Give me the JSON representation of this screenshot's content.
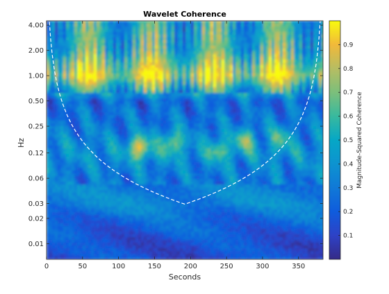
{
  "chart_data": {
    "type": "heatmap",
    "title": "Wavelet Coherence",
    "xlabel": "Seconds",
    "ylabel": "Hz",
    "colorbar_label": "Magnitude-Squared Coherence",
    "colormap": "parula",
    "x_range": [
      0,
      384
    ],
    "x_ticks": [
      0,
      50,
      100,
      150,
      200,
      250,
      300,
      350
    ],
    "x_tick_labels": [
      "0",
      "50",
      "100",
      "150",
      "200",
      "250",
      "300",
      "350"
    ],
    "y_scale": "log",
    "y_ticks": [
      0.01,
      0.02,
      0.03,
      0.06,
      0.12,
      0.25,
      0.5,
      1.0,
      2.0,
      4.0
    ],
    "y_tick_labels": [
      "0.01",
      "0.02",
      "0.03",
      "0.06",
      "0.12",
      "0.25",
      "0.50",
      "1.00",
      "2.00",
      "4.00"
    ],
    "color_range": [
      0,
      1
    ],
    "colorbar_ticks": [
      0.1,
      0.2,
      0.3,
      0.4,
      0.5,
      0.6,
      0.7,
      0.8,
      0.9
    ],
    "colorbar_tick_labels": [
      "0.1",
      "0.2",
      "0.3",
      "0.4",
      "0.5",
      "0.6",
      "0.7",
      "0.8",
      "0.9"
    ],
    "grid": false,
    "cone_of_influence": "dashed white line",
    "coherence_by_frequency": [
      {
        "hz": 4.0,
        "coherence": 0.5
      },
      {
        "hz": 2.0,
        "coherence": 0.55
      },
      {
        "hz": 1.0,
        "coherence": 0.85
      },
      {
        "hz": 0.5,
        "coherence": 0.25
      },
      {
        "hz": 0.25,
        "coherence": 0.3
      },
      {
        "hz": 0.12,
        "coherence": 0.4
      },
      {
        "hz": 0.06,
        "coherence": 0.3
      },
      {
        "hz": 0.03,
        "coherence": 0.35
      },
      {
        "hz": 0.02,
        "coherence": 0.25
      },
      {
        "hz": 0.01,
        "coherence": 0.15
      }
    ],
    "high_coherence_regions": [
      {
        "t": 130,
        "hz": 0.14,
        "coherence": 0.9
      },
      {
        "t": 175,
        "hz": 0.16,
        "coherence": 0.75
      },
      {
        "t": 240,
        "hz": 0.13,
        "coherence": 0.65
      },
      {
        "t": 275,
        "hz": 0.17,
        "coherence": 0.7
      },
      {
        "t": 325,
        "hz": 0.18,
        "coherence": 0.65
      }
    ]
  }
}
